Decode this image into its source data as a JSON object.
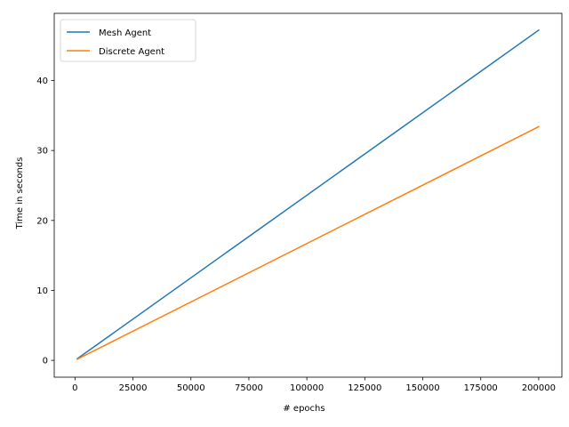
{
  "chart_data": {
    "type": "line",
    "title": "",
    "xlabel": "# epochs",
    "ylabel": "Time in seconds",
    "xlim": [
      -8950,
      210000
    ],
    "ylim": [
      -2.4,
      49.6
    ],
    "xticks": [
      0,
      25000,
      50000,
      75000,
      100000,
      125000,
      150000,
      175000,
      200000
    ],
    "xtick_labels": [
      "0",
      "25000",
      "50000",
      "75000",
      "100000",
      "125000",
      "150000",
      "175000",
      "200000"
    ],
    "yticks": [
      0,
      10,
      20,
      30,
      40
    ],
    "ytick_labels": [
      "0",
      "10",
      "20",
      "30",
      "40"
    ],
    "grid": false,
    "legend_position": "upper left",
    "series": [
      {
        "name": "Mesh Agent",
        "color": "#1f77b4",
        "x": [
          1000,
          200000
        ],
        "y": [
          0.24,
          47.2
        ]
      },
      {
        "name": "Discrete Agent",
        "color": "#ff7f0e",
        "x": [
          1000,
          200000
        ],
        "y": [
          0.17,
          33.4
        ]
      }
    ]
  }
}
